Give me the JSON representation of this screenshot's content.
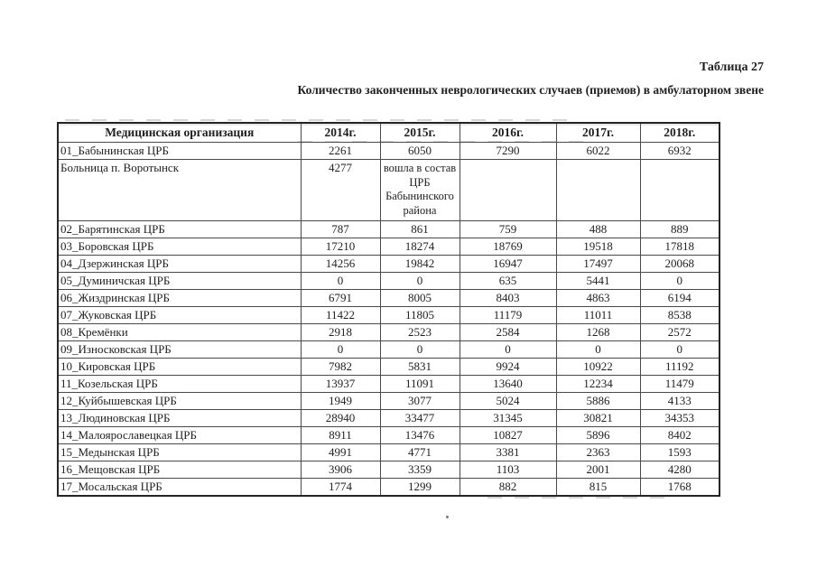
{
  "page": {
    "table_label": "Таблица 27",
    "title": "Количество законченных неврологических случаев (приемов) в амбулаторном звене"
  },
  "table": {
    "columns": [
      "Медицинская организация",
      "2014г.",
      "2015г.",
      "2016г.",
      "2017г.",
      "2018г."
    ],
    "rows": [
      {
        "org": "01_Бабынинская ЦРБ",
        "values": [
          "2261",
          "6050",
          "7290",
          "6022",
          "6932"
        ]
      },
      {
        "org": "Больница п. Воротынск",
        "values": [
          "4277",
          [
            "вошла в состав",
            "ЦРБ",
            "Бабынинского",
            "района"
          ],
          "",
          "",
          ""
        ]
      },
      {
        "org": "02_Барятинская ЦРБ",
        "values": [
          "787",
          "861",
          "759",
          "488",
          "889"
        ]
      },
      {
        "org": "03_Боровская ЦРБ",
        "values": [
          "17210",
          "18274",
          "18769",
          "19518",
          "17818"
        ]
      },
      {
        "org": "04_Дзержинская ЦРБ",
        "values": [
          "14256",
          "19842",
          "16947",
          "17497",
          "20068"
        ]
      },
      {
        "org": "05_Думиничская ЦРБ",
        "values": [
          "0",
          "0",
          "635",
          "5441",
          "0"
        ]
      },
      {
        "org": "06_Жиздринская ЦРБ",
        "values": [
          "6791",
          "8005",
          "8403",
          "4863",
          "6194"
        ]
      },
      {
        "org": "07_Жуковская ЦРБ",
        "values": [
          "11422",
          "11805",
          "11179",
          "11011",
          "8538"
        ]
      },
      {
        "org": "08_Кремёнки",
        "values": [
          "2918",
          "2523",
          "2584",
          "1268",
          "2572"
        ]
      },
      {
        "org": "09_Износковская ЦРБ",
        "values": [
          "0",
          "0",
          "0",
          "0",
          "0"
        ]
      },
      {
        "org": "10_Кировская ЦРБ",
        "values": [
          "7982",
          "5831",
          "9924",
          "10922",
          "11192"
        ]
      },
      {
        "org": "11_Козельская ЦРБ",
        "values": [
          "13937",
          "11091",
          "13640",
          "12234",
          "11479"
        ]
      },
      {
        "org": "12_Куйбышевская ЦРБ",
        "values": [
          "1949",
          "3077",
          "5024",
          "5886",
          "4133"
        ]
      },
      {
        "org": "13_Людиновская ЦРБ",
        "values": [
          "28940",
          "33477",
          "31345",
          "30821",
          "34353"
        ]
      },
      {
        "org": "14_Малоярославецкая ЦРБ",
        "values": [
          "8911",
          "13476",
          "10827",
          "5896",
          "8402"
        ]
      },
      {
        "org": "15_Медынская ЦРБ",
        "values": [
          "4991",
          "4771",
          "3381",
          "2363",
          "1593"
        ]
      },
      {
        "org": "16_Мещовская ЦРБ",
        "values": [
          "3906",
          "3359",
          "1103",
          "2001",
          "4280"
        ]
      },
      {
        "org": "17_Мосальская ЦРБ",
        "values": [
          "1774",
          "1299",
          "882",
          "815",
          "1768"
        ]
      }
    ]
  }
}
